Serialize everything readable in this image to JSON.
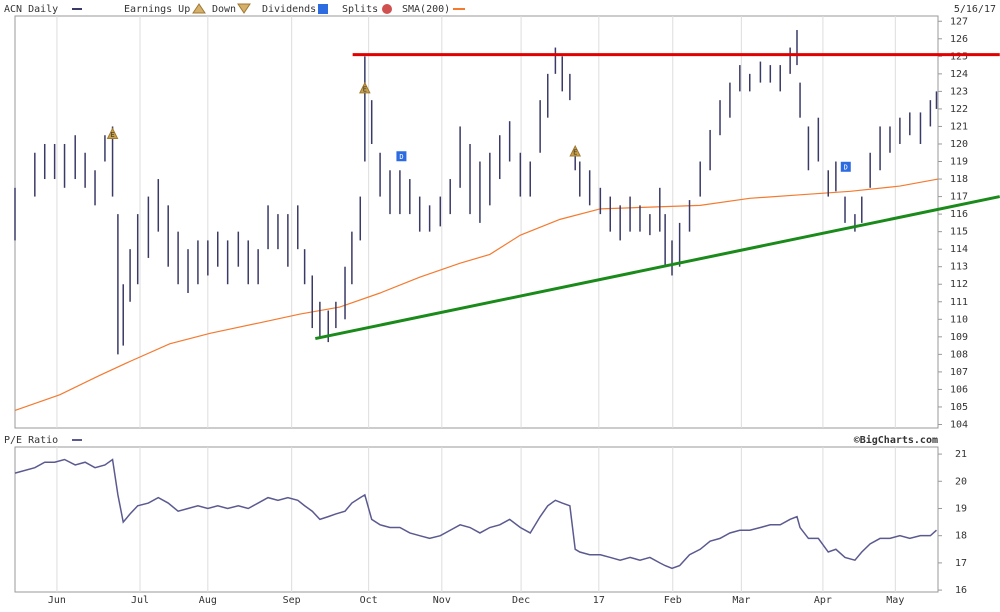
{
  "chart_data": [
    {
      "type": "ohlc",
      "title": "ACN Daily",
      "date": "5/16/17",
      "legend_items": {
        "earnings_up": "Earnings Up",
        "earnings_down": "Down",
        "dividends": "Dividends",
        "splits": "Splits"
      },
      "color": "#3a3a68",
      "x": [
        0.45,
        0.71,
        0.84,
        0.97,
        1.1,
        1.24,
        1.37,
        1.5,
        1.63,
        1.73,
        1.8,
        1.87,
        1.96,
        2.06,
        2.2,
        2.33,
        2.46,
        2.59,
        2.72,
        2.85,
        2.98,
        3.11,
        3.24,
        3.38,
        3.51,
        3.64,
        3.77,
        3.9,
        4.03,
        4.16,
        4.25,
        4.35,
        4.45,
        4.56,
        4.66,
        4.78,
        4.87,
        4.98,
        5.04,
        5.13,
        5.24,
        5.37,
        5.5,
        5.63,
        5.76,
        5.89,
        6.03,
        6.16,
        6.29,
        6.42,
        6.55,
        6.68,
        6.81,
        6.94,
        7.08,
        7.21,
        7.34,
        7.44,
        7.54,
        7.63,
        7.73,
        7.8,
        7.86,
        7.99,
        8.13,
        8.26,
        8.39,
        8.52,
        8.65,
        8.78,
        8.91,
        8.98,
        9.07,
        9.17,
        9.3,
        9.44,
        9.57,
        9.7,
        9.83,
        9.96,
        10.09,
        10.23,
        10.36,
        10.49,
        10.62,
        10.71,
        10.75,
        10.86,
        10.99,
        11.12,
        11.22,
        11.34,
        11.47,
        11.56,
        11.67,
        11.8,
        11.93,
        12.06,
        12.19,
        12.33,
        12.46,
        12.54
      ],
      "low": [
        114.5,
        117,
        118,
        118,
        117.5,
        118,
        117.5,
        116.5,
        119,
        117,
        108,
        108.5,
        111,
        112,
        113.5,
        115,
        113,
        112,
        111.5,
        112,
        112.5,
        113,
        112,
        113,
        112,
        112,
        114,
        114,
        113,
        114,
        112,
        109.5,
        109,
        108.7,
        109.5,
        110,
        112,
        114.5,
        119,
        120,
        117,
        116,
        116,
        116,
        115,
        115,
        115.3,
        116,
        117.5,
        116,
        115.5,
        116.5,
        118,
        119,
        117,
        117,
        119.5,
        121.5,
        124,
        123,
        122.5,
        118.5,
        117,
        116.5,
        116,
        115,
        114.5,
        115,
        115,
        114.8,
        115,
        113,
        112.5,
        113,
        115,
        117,
        118.5,
        120.5,
        121.5,
        123,
        123,
        123.5,
        123.5,
        123,
        124,
        124.5,
        121.5,
        118.5,
        119,
        117,
        117.3,
        115.5,
        115,
        115.5,
        117.5,
        118.5,
        119.5,
        120,
        120.5,
        120,
        121,
        122
      ],
      "high": [
        117.5,
        119.5,
        120,
        120,
        120,
        120.5,
        119.5,
        118.5,
        120.5,
        121,
        116,
        112,
        114,
        116,
        117,
        118,
        116.5,
        115,
        114,
        114.5,
        114.5,
        115,
        114.5,
        115,
        114.5,
        114,
        116.5,
        116,
        116,
        116.5,
        114,
        112.5,
        111,
        110.5,
        111,
        113,
        115,
        117,
        125,
        122.5,
        119.5,
        118.5,
        118.5,
        118,
        117,
        116.5,
        117,
        118,
        121,
        120,
        119,
        119.5,
        120.5,
        121.3,
        119.5,
        119,
        122.5,
        124,
        125.5,
        125,
        124,
        119.5,
        119,
        118.5,
        117.5,
        117,
        116.5,
        117,
        116.5,
        116,
        117.5,
        116,
        114.5,
        115.5,
        116.8,
        119,
        120.8,
        122.5,
        123.5,
        124.5,
        124,
        124.7,
        124.5,
        124.5,
        125.5,
        126.5,
        123.5,
        121,
        121.5,
        118.5,
        119,
        117,
        116,
        117,
        119.5,
        121,
        121,
        121.5,
        121.8,
        121.8,
        122.5,
        123
      ],
      "series": [
        {
          "name": "SMA(200)",
          "color": "#f47a30",
          "x": [
            0.45,
            1.04,
            1.56,
            1.96,
            2.48,
            3.01,
            3.66,
            4.19,
            4.71,
            5.24,
            5.76,
            6.29,
            6.68,
            7.08,
            7.6,
            8.13,
            8.78,
            9.44,
            10.09,
            10.75,
            11.41,
            12.06,
            12.56
          ],
          "values": [
            104.8,
            105.7,
            106.8,
            107.6,
            108.6,
            109.2,
            109.8,
            110.3,
            110.7,
            111.5,
            112.4,
            113.2,
            113.7,
            114.8,
            115.7,
            116.3,
            116.4,
            116.5,
            116.9,
            117.1,
            117.3,
            117.6,
            118.0
          ]
        }
      ],
      "trendlines": [
        {
          "color": "#e00000",
          "x": [
            4.88,
            13.37
          ],
          "y": [
            125.1,
            125.1
          ]
        },
        {
          "color": "#1a8a1a",
          "x": [
            4.39,
            13.37
          ],
          "y": [
            108.9,
            117.0
          ]
        }
      ],
      "earnings": {
        "label": "E",
        "color": "#c9a24a",
        "x": [
          1.73,
          5.04,
          7.8
        ],
        "y": [
          120.6,
          123.2,
          119.6
        ]
      },
      "dividends": {
        "label": "D",
        "color": "#2d6be0",
        "x": [
          5.52,
          11.35
        ],
        "y": [
          119.3,
          118.7
        ]
      },
      "xlim": [
        0.45,
        12.56
      ],
      "xticks": [
        {
          "value": 1,
          "label": "Jun"
        },
        {
          "value": 2.09,
          "label": "Jul"
        },
        {
          "value": 2.98,
          "label": "Aug"
        },
        {
          "value": 4.08,
          "label": "Sep"
        },
        {
          "value": 5.09,
          "label": "Oct"
        },
        {
          "value": 6.05,
          "label": "Nov"
        },
        {
          "value": 7.09,
          "label": "Dec"
        },
        {
          "value": 8.11,
          "label": "17"
        },
        {
          "value": 9.08,
          "label": "Feb"
        },
        {
          "value": 9.98,
          "label": "Mar"
        },
        {
          "value": 11.05,
          "label": "Apr"
        },
        {
          "value": 12.0,
          "label": "May"
        }
      ],
      "ylim": [
        103.8,
        127.3
      ],
      "yticks": [
        104,
        105,
        106,
        107,
        108,
        109,
        110,
        111,
        112,
        113,
        114,
        115,
        116,
        117,
        118,
        119,
        120,
        121,
        122,
        123,
        124,
        125,
        126,
        127
      ],
      "grid": true
    },
    {
      "type": "line",
      "title": "P/E Ratio",
      "credit": "©BigCharts.com",
      "color": "#5a5a90",
      "x": [
        0.45,
        0.71,
        0.84,
        0.97,
        1.1,
        1.24,
        1.37,
        1.5,
        1.63,
        1.73,
        1.8,
        1.87,
        1.96,
        2.06,
        2.2,
        2.33,
        2.46,
        2.59,
        2.72,
        2.85,
        2.98,
        3.11,
        3.24,
        3.38,
        3.51,
        3.64,
        3.77,
        3.9,
        4.03,
        4.16,
        4.25,
        4.35,
        4.45,
        4.56,
        4.66,
        4.78,
        4.87,
        4.98,
        5.04,
        5.13,
        5.24,
        5.37,
        5.5,
        5.63,
        5.76,
        5.89,
        6.03,
        6.16,
        6.29,
        6.42,
        6.55,
        6.68,
        6.81,
        6.94,
        7.08,
        7.21,
        7.34,
        7.44,
        7.54,
        7.63,
        7.73,
        7.8,
        7.86,
        7.99,
        8.13,
        8.26,
        8.39,
        8.52,
        8.65,
        8.78,
        8.91,
        8.98,
        9.07,
        9.17,
        9.3,
        9.44,
        9.57,
        9.7,
        9.83,
        9.96,
        10.09,
        10.23,
        10.36,
        10.49,
        10.62,
        10.71,
        10.75,
        10.86,
        10.99,
        11.12,
        11.22,
        11.34,
        11.47,
        11.56,
        11.67,
        11.8,
        11.93,
        12.06,
        12.19,
        12.33,
        12.46,
        12.54
      ],
      "values": [
        20.3,
        20.5,
        20.7,
        20.7,
        20.8,
        20.6,
        20.7,
        20.5,
        20.6,
        20.8,
        19.5,
        18.5,
        18.8,
        19.1,
        19.2,
        19.4,
        19.2,
        18.9,
        19.0,
        19.1,
        19.0,
        19.1,
        19.0,
        19.1,
        19.0,
        19.2,
        19.4,
        19.3,
        19.4,
        19.3,
        19.1,
        18.9,
        18.6,
        18.7,
        18.8,
        18.9,
        19.2,
        19.4,
        19.5,
        18.6,
        18.4,
        18.3,
        18.3,
        18.1,
        18.0,
        17.9,
        18.0,
        18.2,
        18.4,
        18.3,
        18.1,
        18.3,
        18.4,
        18.6,
        18.3,
        18.1,
        18.7,
        19.1,
        19.3,
        19.2,
        19.1,
        17.5,
        17.4,
        17.3,
        17.3,
        17.2,
        17.1,
        17.2,
        17.1,
        17.2,
        17.0,
        16.9,
        16.8,
        16.9,
        17.3,
        17.5,
        17.8,
        17.9,
        18.1,
        18.2,
        18.2,
        18.3,
        18.4,
        18.4,
        18.6,
        18.7,
        18.3,
        17.9,
        17.9,
        17.4,
        17.5,
        17.2,
        17.1,
        17.4,
        17.7,
        17.9,
        17.9,
        18.0,
        17.9,
        18.0,
        18.0,
        18.2
      ],
      "xlim": [
        0.45,
        12.56
      ],
      "ylim": [
        15.93,
        21.26
      ],
      "yticks": [
        16,
        17,
        18,
        19,
        20,
        21
      ]
    }
  ]
}
